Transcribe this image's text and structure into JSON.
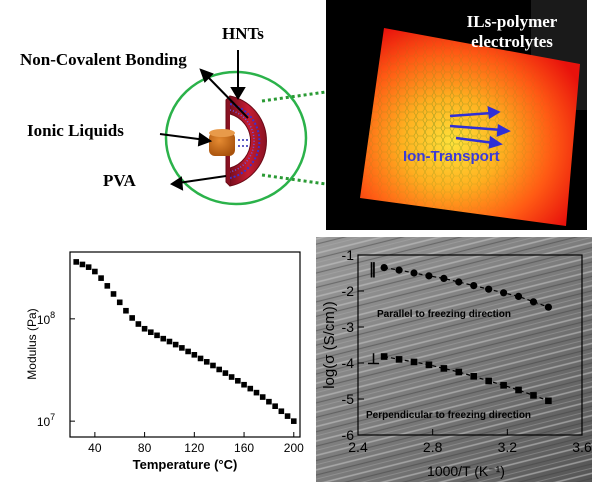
{
  "schematic": {
    "labels": {
      "hnts": "HNTs",
      "non_covalent": "Non-Covalent Bonding",
      "ionic_liquids": "Ionic Liquids",
      "pva": "PVA"
    },
    "colors": {
      "ring": "#2bb24a",
      "hnt_outer": "#b81a32",
      "hnt_inner": "#3d2fd0",
      "ionic_liquid": "#c86a12",
      "connector": "#2a9a34"
    }
  },
  "electrolyte_image": {
    "title_line1": "ILs-polymer",
    "title_line2": "electrolytes",
    "transport_label": "Ion-Transport",
    "colors": {
      "background": "#000000",
      "hot": "#ffd23a",
      "edge": "#f01a10",
      "arrow": "#2f2fd6"
    }
  },
  "chart_data": [
    {
      "type": "scatter",
      "xlabel": "Temperature (°C)",
      "ylabel": "Modulus (Pa)",
      "xlim": [
        20,
        205
      ],
      "ylim": [
        7000000.0,
        450000000.0
      ],
      "yscale": "log",
      "x_ticks": [
        40,
        80,
        120,
        160,
        200
      ],
      "x_tick_labels": [
        "40",
        "80",
        "120",
        "160",
        "200"
      ],
      "y_tick_labels": [
        {
          "base": "10",
          "exp": "8",
          "value": 100000000.0
        },
        {
          "base": "10",
          "exp": "7",
          "value": 10000000.0
        }
      ],
      "grid": false,
      "series": [
        {
          "marker": "square",
          "x": [
            25,
            30,
            35,
            40,
            45,
            50,
            55,
            60,
            65,
            70,
            75,
            80,
            85,
            90,
            95,
            100,
            105,
            110,
            115,
            120,
            125,
            130,
            135,
            140,
            145,
            150,
            155,
            160,
            165,
            170,
            175,
            180,
            185,
            190,
            195,
            200
          ],
          "y": [
            360000000.0,
            340000000.0,
            320000000.0,
            290000000.0,
            250000000.0,
            210000000.0,
            175000000.0,
            145000000.0,
            120000000.0,
            102000000.0,
            89000000.0,
            80000000.0,
            74000000.0,
            69000000.0,
            64000000.0,
            60000000.0,
            56000000.0,
            52000000.0,
            48000000.0,
            44500000.0,
            41000000.0,
            38000000.0,
            35000000.0,
            32000000.0,
            29500000.0,
            27000000.0,
            24800000.0,
            22700000.0,
            20800000.0,
            19000000.0,
            17200000.0,
            15500000.0,
            14000000.0,
            12500000.0,
            11200000.0,
            10000000.0
          ]
        }
      ]
    },
    {
      "type": "line",
      "xlabel": "1000/T (K⁻¹)",
      "ylabel": "log(σ (S/cm))",
      "xlim": [
        2.4,
        3.6
      ],
      "ylim": [
        -6,
        -1
      ],
      "x_ticks": [
        2.4,
        2.8,
        3.2,
        3.6
      ],
      "x_tick_labels": [
        "2.4",
        "2.8",
        "3.2",
        "3.6"
      ],
      "y_ticks": [
        -1,
        -2,
        -3,
        -4,
        -5,
        -6
      ],
      "y_tick_labels": [
        "-1",
        "-2",
        "-3",
        "-4",
        "-5",
        "-6"
      ],
      "grid": false,
      "background": "micrograph",
      "series": [
        {
          "symbol": "∥",
          "name": "Parallel to freezing direction",
          "marker": "circle",
          "x": [
            2.54,
            2.62,
            2.7,
            2.78,
            2.86,
            2.94,
            3.02,
            3.1,
            3.18,
            3.26,
            3.34,
            3.42
          ],
          "y": [
            -1.35,
            -1.42,
            -1.5,
            -1.58,
            -1.65,
            -1.75,
            -1.85,
            -1.95,
            -2.05,
            -2.15,
            -2.3,
            -2.45
          ]
        },
        {
          "symbol": "⊥",
          "name": "Perpendicular to freezing direction",
          "marker": "square",
          "x": [
            2.54,
            2.62,
            2.7,
            2.78,
            2.86,
            2.94,
            3.02,
            3.1,
            3.18,
            3.26,
            3.34,
            3.42
          ],
          "y": [
            -3.82,
            -3.9,
            -3.97,
            -4.05,
            -4.15,
            -4.25,
            -4.37,
            -4.5,
            -4.62,
            -4.75,
            -4.9,
            -5.05
          ]
        }
      ]
    }
  ]
}
